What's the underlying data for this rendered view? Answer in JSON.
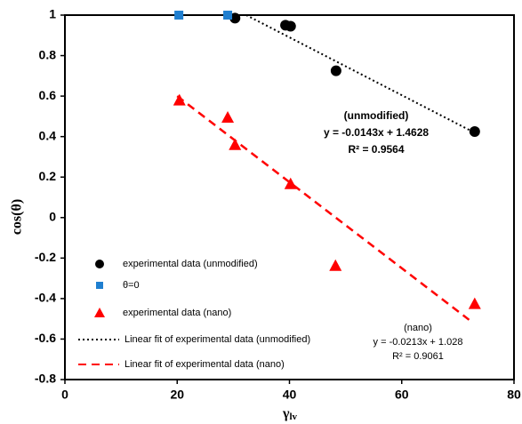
{
  "chart_data": {
    "type": "scatter",
    "xlabel": {
      "symbol": "γ",
      "subscript": "lv"
    },
    "ylabel": "cos(θ)",
    "xlim": [
      0,
      80
    ],
    "ylim": [
      -0.8,
      1
    ],
    "xticks": [
      0,
      20,
      40,
      60,
      80
    ],
    "yticks": [
      1,
      0.8,
      0.6,
      0.4,
      0.2,
      0,
      -0.2,
      -0.4,
      -0.6,
      -0.8
    ],
    "series": [
      {
        "name": "experimental data (unmodified)",
        "color": "#000000",
        "marker": "circle",
        "x": [
          30.3,
          39.3,
          40.2,
          48.3,
          73
        ],
        "values": [
          0.985,
          0.95,
          0.945,
          0.725,
          0.425
        ]
      },
      {
        "name": "θ=0",
        "color": "#1f7fd0",
        "marker": "square",
        "x": [
          20.3,
          29
        ],
        "values": [
          1,
          1
        ]
      },
      {
        "name": "experimental data (nano)",
        "color": "#ff0000",
        "marker": "triangle",
        "x": [
          20.4,
          29,
          30.3,
          40.2,
          48.2,
          73
        ],
        "values": [
          0.58,
          0.495,
          0.36,
          0.167,
          -0.237,
          -0.425
        ]
      },
      {
        "name": "Linear fit of experimental data (unmodified)",
        "color": "#000000",
        "line": "dotted",
        "x": [
          32.3,
          73
        ],
        "values": [
          1,
          0.419
        ]
      },
      {
        "name": "Linear fit of experimental data (nano)",
        "color": "#ff0000",
        "line": "dashed",
        "x": [
          20,
          72
        ],
        "values": [
          0.6,
          -0.505
        ]
      }
    ],
    "annotations": [
      "(unmodified)",
      "y = -0.0143x + 1.4628",
      "R² = 0.9564",
      "(nano)",
      "y = -0.0213x + 1.028",
      "R² = 0.9061"
    ]
  }
}
